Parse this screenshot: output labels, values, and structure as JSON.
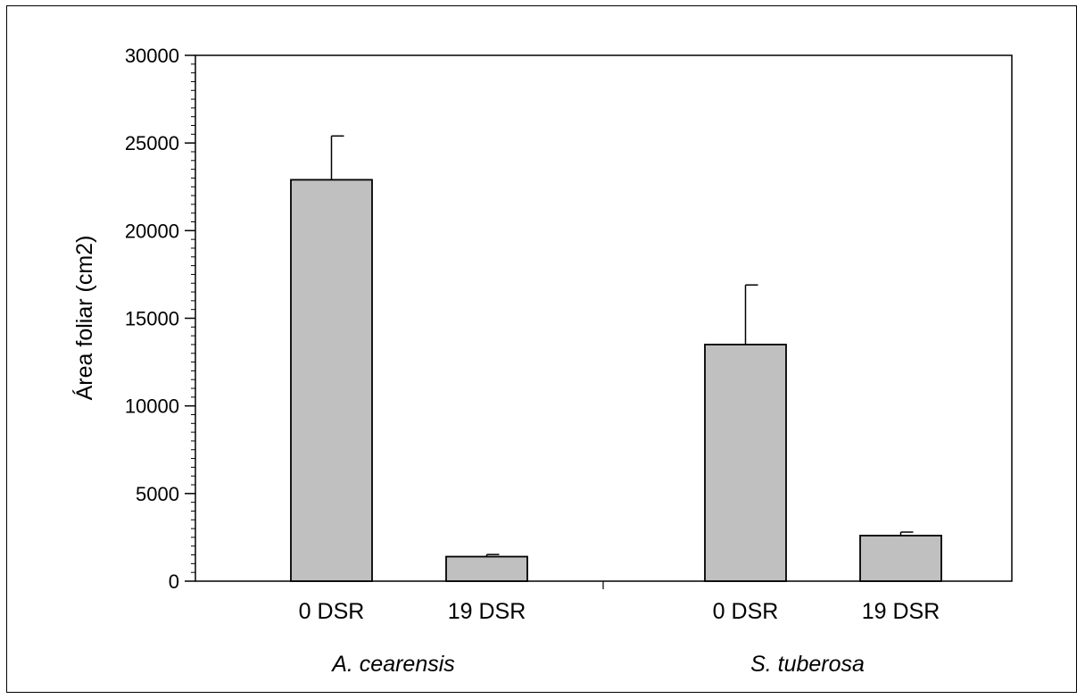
{
  "chart_data": {
    "type": "bar",
    "title": "",
    "xlabel": "",
    "ylabel": "Área foliar (cm2)",
    "ylim": [
      0,
      30000
    ],
    "yticks": [
      "0",
      "5000",
      "10000",
      "15000",
      "20000",
      "25000",
      "30000"
    ],
    "grid": false,
    "legend": "none",
    "bar_color": "#c0c0c0",
    "groups": [
      {
        "label": "A. cearensis",
        "categories": [
          "0 DSR",
          "19 DSR"
        ],
        "values": [
          22900,
          1400
        ],
        "errors": [
          2500,
          120
        ]
      },
      {
        "label": "S. tuberosa",
        "categories": [
          "0 DSR",
          "19 DSR"
        ],
        "values": [
          13500,
          2600
        ],
        "errors": [
          3400,
          200
        ]
      }
    ]
  }
}
